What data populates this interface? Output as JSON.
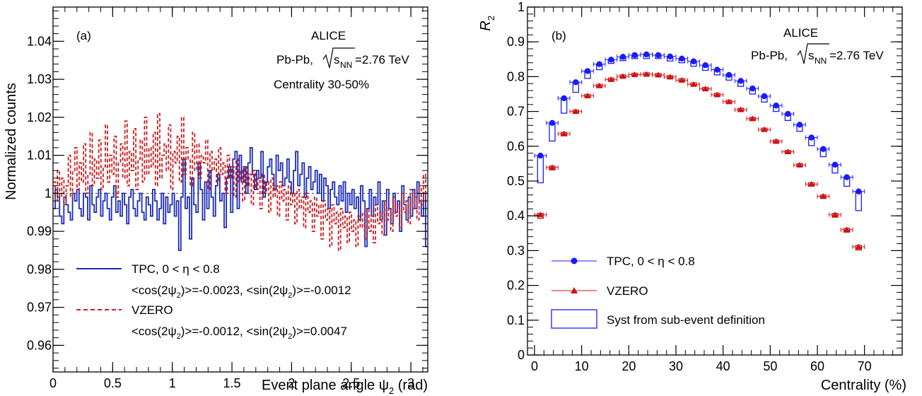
{
  "chart_data": [
    {
      "panel": "(a)",
      "type": "line",
      "xlabel": "Event plane angle ψ",
      "xlabel_sub": "2",
      "xlabel_unit": "(rad)",
      "ylabel": "Normalized counts",
      "xlim": [
        0,
        3.1416
      ],
      "ylim": [
        0.953,
        1.049
      ],
      "xticks": [
        0,
        0.5,
        1,
        1.5,
        2,
        2.5,
        3
      ],
      "xtick_labels": [
        "0",
        "0.5",
        "1",
        "1.5",
        "2",
        "2.5",
        "3"
      ],
      "yticks": [
        0.96,
        0.97,
        0.98,
        0.99,
        1,
        1.01,
        1.02,
        1.03,
        1.04
      ],
      "ytick_labels": [
        "0.96",
        "0.97",
        "0.98",
        "0.99",
        "1",
        "1.01",
        "1.02",
        "1.03",
        "1.04"
      ],
      "reference_line": 1,
      "annotations": [
        "ALICE",
        "Centrality 30-50%"
      ],
      "system_prefix": "Pb-Pb, ",
      "energy_s": "s",
      "energy_sub": "NN",
      "energy_value": "=2.76 TeV",
      "series": [
        {
          "name": "TPC, 0 < η < 0.8",
          "style": "solid-step",
          "color": "#1a2bb8",
          "stats": "<cos(2ψ2)>=-0.0023, <sin(2ψ2)>=-0.0012",
          "values": [
            0.996,
            1.001,
            0.999,
            0.994,
            0.992,
            0.999,
            0.997,
            0.995,
            0.993,
            1.0,
            0.998,
            1.001,
            0.996,
            0.994,
            1.0,
            0.999,
            0.993,
            1.002,
            0.997,
            0.995,
            0.999,
            1.001,
            0.994,
            0.998,
            1.0,
            0.996,
            0.993,
            0.999,
            1.002,
            0.995,
            0.998,
            0.994,
            1.0,
            0.997,
            0.992,
            0.999,
            1.001,
            0.996,
            0.994,
            0.998,
            1.0,
            0.995,
            0.993,
            0.999,
            0.997,
            0.994,
            1.001,
            0.998,
            0.993,
            0.996,
            1.0,
            0.992,
            0.999,
            0.995,
            0.997,
            1.0,
            0.994,
            0.998,
            0.985,
            0.999,
            1.009,
            0.996,
            0.999,
            0.988,
            1.004,
            0.997,
            0.995,
            1.008,
            1.001,
            0.993,
            1.003,
            0.996,
            1.006,
            0.999,
            0.994,
            1.002,
            1.005,
            0.998,
            1.0,
            0.991,
            1.004,
            1.007,
            0.995,
            1.009,
            1.011,
            0.996,
            1.01,
            1.003,
            1.007,
            1.0,
            1.008,
            1.012,
            1.005,
            1.001,
            1.006,
            1.004,
            1.011,
            0.999,
            1.003,
            1.007,
            1.009,
            1.005,
            1.001,
            1.01,
            1.006,
            1.008,
            1.002,
            1.004,
            1.009,
            1.003,
            1.0,
            1.006,
            1.011,
            1.002,
            1.005,
            1.008,
            0.999,
            1.004,
            1.007,
            1.001,
            1.003,
            1.006,
            1.0,
            1.005,
            0.998,
            1.004,
            1.002,
            0.996,
            1.001,
            1.003,
            0.999,
            0.997,
            1.002,
            0.998,
            1.003,
            0.995,
            1.0,
            0.997,
            1.001,
            0.996,
            0.999,
            0.993,
            1.002,
            0.998,
            0.986,
            0.996,
            1.001,
            0.994,
            0.999,
            0.997,
            1.003,
            0.993,
            0.998,
            0.989,
            1.001,
            0.996,
            0.992,
            1.0,
            0.995,
            0.998,
            0.99,
            1.002,
            0.997,
            0.993,
            0.999,
            0.994,
            1.001,
            0.996,
            1.003,
            0.998,
            0.994,
            1.0,
            0.986
          ]
        },
        {
          "name": "VZERO",
          "style": "dashed",
          "color": "#cc1f1f",
          "stats": "<cos(2ψ2)>=-0.0012, <sin(2ψ2)>=0.0047",
          "values": [
            1.003,
            0.998,
            1.006,
            0.999,
            1.004,
            0.997,
            1.002,
            1.01,
            0.999,
            1.006,
            1.012,
            1.001,
            1.008,
            1.003,
            1.013,
            1.0,
            1.005,
            1.016,
            1.002,
            1.009,
            1.004,
            1.014,
            1.001,
            1.007,
            1.018,
            1.003,
            1.01,
            1.005,
            1.015,
            0.999,
            1.008,
            1.013,
            1.004,
            1.019,
            1.002,
            1.011,
            1.006,
            1.017,
            1.001,
            1.009,
            1.014,
            1.003,
            1.02,
            1.005,
            1.012,
            1.007,
            1.016,
            1.002,
            1.021,
            1.004,
            1.01,
            1.013,
            1.006,
            1.018,
            1.001,
            1.011,
            1.008,
            1.015,
            1.003,
            1.02,
            1.005,
            1.012,
            1.009,
            1.002,
            1.016,
            1.006,
            1.013,
            1.004,
            1.01,
            1.008,
            1.014,
            1.001,
            1.011,
            1.006,
            1.009,
            1.003,
            1.012,
            1.005,
            1.008,
            1.0,
            1.01,
            1.004,
            1.007,
            0.999,
            1.009,
            1.003,
            1.006,
            0.998,
            1.007,
            1.002,
            1.005,
            0.997,
            1.006,
            1.001,
            1.004,
            0.996,
            1.005,
            1.0,
            1.003,
            0.995,
            1.004,
            0.999,
            1.002,
            0.994,
            1.003,
            0.998,
            1.001,
            0.993,
            1.002,
            0.997,
            1.0,
            0.992,
            1.001,
            0.996,
            0.999,
            0.991,
            1.0,
            0.995,
            0.998,
            0.99,
            0.999,
            0.994,
            0.997,
            0.988,
            0.998,
            0.993,
            0.996,
            0.986,
            0.997,
            0.992,
            0.995,
            0.985,
            0.996,
            0.991,
            0.994,
            0.987,
            0.995,
            0.99,
            0.993,
            0.986,
            0.994,
            0.991,
            0.995,
            0.988,
            0.996,
            0.99,
            0.994,
            0.987,
            0.997,
            0.992,
            0.995,
            0.989,
            0.998,
            0.993,
            0.996,
            0.99,
            0.999,
            0.994,
            0.997,
            0.991,
            1.0,
            0.995,
            0.998,
            0.992,
            1.001,
            0.996,
            0.999,
            0.993,
            1.002,
            0.997,
            1.005,
            0.998
          ]
        }
      ]
    },
    {
      "panel": "(b)",
      "type": "scatter",
      "xlabel": "Centrality (%)",
      "ylabel": "R",
      "ylabel_sub": "2",
      "xlim": [
        -1.5,
        78
      ],
      "ylim": [
        0,
        1
      ],
      "xticks": [
        0,
        10,
        20,
        30,
        40,
        50,
        60,
        70
      ],
      "xtick_labels": [
        "0",
        "10",
        "20",
        "30",
        "40",
        "50",
        "60",
        "70"
      ],
      "yticks": [
        0,
        0.1,
        0.2,
        0.3,
        0.4,
        0.5,
        0.6,
        0.7,
        0.8,
        0.9,
        1
      ],
      "ytick_labels": [
        "0",
        "0.1",
        "0.2",
        "0.3",
        "0.4",
        "0.5",
        "0.6",
        "0.7",
        "0.8",
        "0.9",
        "1"
      ],
      "annotations": [
        "ALICE"
      ],
      "system_prefix": "Pb-Pb, ",
      "energy_s": "s",
      "energy_sub": "NN",
      "energy_value": "=2.76 TeV",
      "syst_label": "Syst from sub-event definition",
      "x": [
        1.25,
        3.75,
        6.25,
        8.75,
        11.25,
        13.75,
        16.25,
        18.75,
        21.25,
        23.75,
        26.25,
        28.75,
        31.25,
        33.75,
        36.25,
        38.75,
        41.25,
        43.75,
        46.25,
        48.75,
        51.25,
        53.75,
        56.25,
        58.75,
        61.25,
        63.75,
        66.25,
        68.75
      ],
      "series": [
        {
          "name": "TPC, 0 < η < 0.8",
          "marker": "circle",
          "color": "#1a1aff",
          "values": [
            0.573,
            0.667,
            0.738,
            0.784,
            0.816,
            0.836,
            0.849,
            0.857,
            0.862,
            0.864,
            0.862,
            0.858,
            0.852,
            0.844,
            0.833,
            0.82,
            0.805,
            0.788,
            0.766,
            0.744,
            0.717,
            0.693,
            0.662,
            0.625,
            0.592,
            0.547,
            0.511,
            0.47
          ],
          "syst_low": [
            0.495,
            0.615,
            0.695,
            0.755,
            0.795,
            0.82,
            0.838,
            0.846,
            0.852,
            0.852,
            0.852,
            0.845,
            0.84,
            0.83,
            0.818,
            0.805,
            0.79,
            0.772,
            0.75,
            0.727,
            0.7,
            0.674,
            0.643,
            0.602,
            0.57,
            0.523,
            0.485,
            0.415
          ],
          "syst_high": [
            0.573,
            0.667,
            0.738,
            0.784,
            0.816,
            0.836,
            0.849,
            0.857,
            0.862,
            0.864,
            0.862,
            0.858,
            0.852,
            0.844,
            0.833,
            0.82,
            0.805,
            0.788,
            0.766,
            0.744,
            0.717,
            0.693,
            0.662,
            0.625,
            0.592,
            0.547,
            0.511,
            0.47
          ]
        },
        {
          "name": "VZERO",
          "marker": "triangle",
          "color": "#d01010",
          "values": [
            0.403,
            0.539,
            0.636,
            0.7,
            0.745,
            0.774,
            0.792,
            0.801,
            0.806,
            0.807,
            0.805,
            0.799,
            0.79,
            0.778,
            0.765,
            0.748,
            0.728,
            0.705,
            0.679,
            0.648,
            0.614,
            0.584,
            0.546,
            0.491,
            0.456,
            0.403,
            0.36,
            0.311
          ],
          "syst_low": [
            0.393,
            0.532,
            0.63,
            0.695,
            0.741,
            0.77,
            0.788,
            0.797,
            0.802,
            0.803,
            0.801,
            0.795,
            0.786,
            0.774,
            0.761,
            0.744,
            0.724,
            0.701,
            0.675,
            0.644,
            0.61,
            0.58,
            0.542,
            0.485,
            0.45,
            0.396,
            0.353,
            0.302
          ],
          "syst_high": [
            0.407,
            0.543,
            0.64,
            0.704,
            0.749,
            0.778,
            0.796,
            0.805,
            0.81,
            0.811,
            0.809,
            0.803,
            0.794,
            0.782,
            0.769,
            0.752,
            0.732,
            0.709,
            0.683,
            0.652,
            0.618,
            0.588,
            0.55,
            0.495,
            0.46,
            0.407,
            0.364,
            0.315
          ]
        }
      ]
    }
  ]
}
